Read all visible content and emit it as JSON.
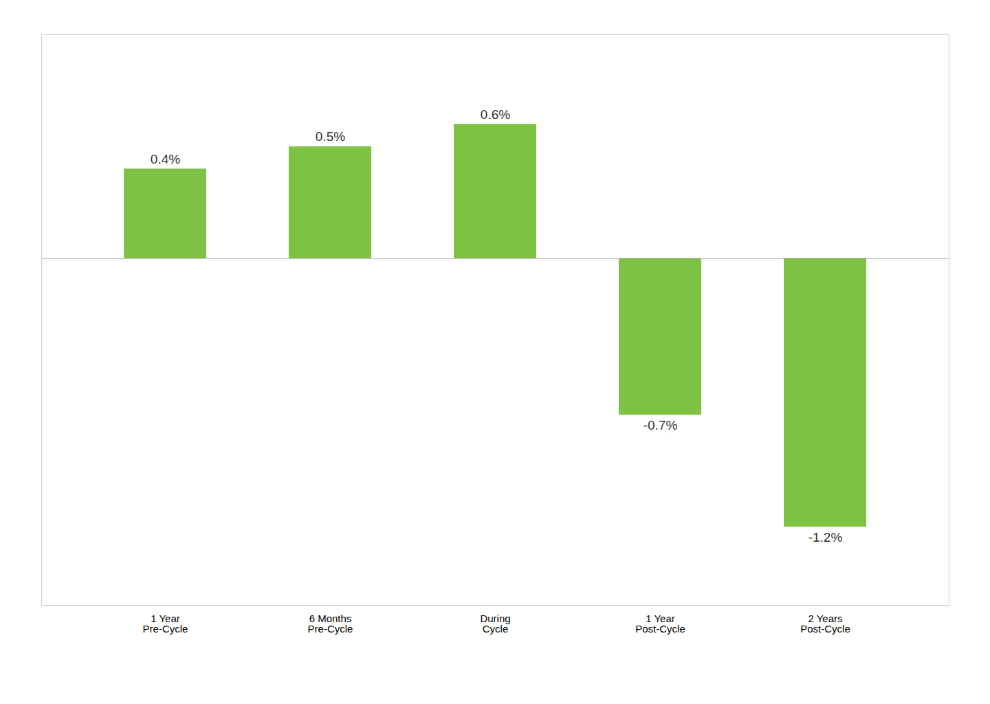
{
  "chart_data": {
    "type": "bar",
    "categories": [
      "1 Year\nPre-Cycle",
      "6 Months\nPre-Cycle",
      "During\nCycle",
      "1 Year\nPost-Cycle",
      "2 Years\nPost-Cycle"
    ],
    "values": [
      0.4,
      0.5,
      0.6,
      -0.7,
      -1.2
    ],
    "value_labels": [
      "0.4%",
      "0.5%",
      "0.6%",
      "-0.7%",
      "-1.2%"
    ],
    "data_labels": true,
    "color": "#7DC242",
    "ylim": [
      -1.55,
      1.0
    ],
    "tick_labels": "x",
    "grid": false
  }
}
